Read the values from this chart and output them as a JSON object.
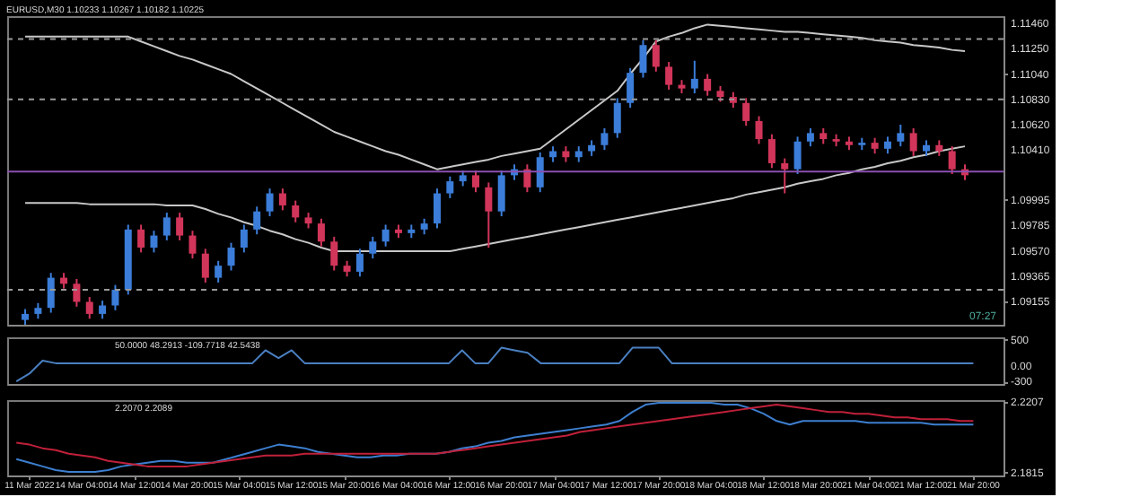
{
  "chart_data": [
    {
      "type": "candlestick",
      "title": "EURUSD,M30 1.10233 1.10267 1.10182 1.10225",
      "categories": [
        null,
        null,
        null,
        null,
        null,
        null,
        null,
        null,
        null,
        null,
        null,
        null,
        null,
        null,
        null,
        null,
        null,
        null,
        null,
        null,
        null,
        null,
        null,
        null,
        null,
        null,
        null,
        null,
        null,
        null,
        null,
        null,
        null,
        null,
        null,
        null,
        null,
        null,
        null,
        null,
        null,
        null,
        null,
        null,
        null,
        null,
        null,
        null,
        null,
        null,
        null,
        null,
        null,
        null,
        null,
        null,
        null,
        null,
        null,
        null,
        null,
        null,
        null,
        null,
        null,
        null,
        null,
        null,
        null,
        null,
        null,
        null,
        null,
        null
      ],
      "ohlc": [
        [
          1.09,
          1.0909,
          1.0896,
          1.0905
        ],
        [
          1.0905,
          1.0914,
          1.0901,
          1.091
        ],
        [
          1.091,
          1.0939,
          1.0906,
          1.0935
        ],
        [
          1.0935,
          1.0939,
          1.0926,
          1.093
        ],
        [
          1.093,
          1.0934,
          1.0911,
          1.0915
        ],
        [
          1.0915,
          1.0919,
          1.0901,
          1.0905
        ],
        [
          1.0905,
          1.0916,
          1.0901,
          1.0912
        ],
        [
          1.0912,
          1.0929,
          1.0908,
          1.0925
        ],
        [
          1.0925,
          1.0979,
          1.0921,
          1.0975
        ],
        [
          1.0975,
          1.0979,
          1.0956,
          1.096
        ],
        [
          1.096,
          1.0974,
          1.0956,
          1.097
        ],
        [
          1.097,
          1.0989,
          1.0966,
          1.0985
        ],
        [
          1.0985,
          1.0989,
          1.0966,
          1.097
        ],
        [
          1.097,
          1.0974,
          1.0951,
          1.0955
        ],
        [
          1.0955,
          1.0959,
          1.0931,
          1.0935
        ],
        [
          1.0935,
          1.0949,
          1.0931,
          1.0945
        ],
        [
          1.0945,
          1.0964,
          1.0941,
          1.096
        ],
        [
          1.096,
          1.0979,
          1.0956,
          1.0975
        ],
        [
          1.0975,
          1.0994,
          1.0971,
          1.099
        ],
        [
          1.099,
          1.1009,
          1.0986,
          1.1005
        ],
        [
          1.1005,
          1.1009,
          1.0991,
          1.0995
        ],
        [
          1.0995,
          1.0999,
          1.0981,
          1.0985
        ],
        [
          1.0985,
          1.0989,
          1.0976,
          1.098
        ],
        [
          1.098,
          1.0984,
          1.0961,
          1.0965
        ],
        [
          1.0965,
          1.0969,
          1.0941,
          1.0945
        ],
        [
          1.0945,
          1.0949,
          1.0936,
          1.094
        ],
        [
          1.094,
          1.0959,
          1.0936,
          1.0955
        ],
        [
          1.0955,
          1.0969,
          1.0951,
          1.0965
        ],
        [
          1.0965,
          1.0979,
          1.0961,
          1.0975
        ],
        [
          1.0975,
          1.0979,
          1.0968,
          1.0972
        ],
        [
          1.0972,
          1.0979,
          1.0968,
          1.0975
        ],
        [
          1.0975,
          1.0984,
          1.0971,
          1.098
        ],
        [
          1.098,
          1.1009,
          1.0976,
          1.1005
        ],
        [
          1.1005,
          1.1019,
          1.1001,
          1.1015
        ],
        [
          1.1015,
          1.1024,
          1.1011,
          1.102
        ],
        [
          1.102,
          1.1024,
          1.1006,
          1.101
        ],
        [
          1.101,
          1.1014,
          1.096,
          1.099
        ],
        [
          1.099,
          1.1024,
          1.0986,
          1.102
        ],
        [
          1.102,
          1.1029,
          1.1016,
          1.1025
        ],
        [
          1.1025,
          1.1029,
          1.1006,
          1.101
        ],
        [
          1.101,
          1.1039,
          1.1006,
          1.1035
        ],
        [
          1.1035,
          1.1044,
          1.1031,
          1.104
        ],
        [
          1.104,
          1.1044,
          1.1031,
          1.1035
        ],
        [
          1.1035,
          1.1044,
          1.1031,
          1.104
        ],
        [
          1.104,
          1.1049,
          1.1036,
          1.1045
        ],
        [
          1.1045,
          1.1059,
          1.1041,
          1.1055
        ],
        [
          1.1055,
          1.1084,
          1.1051,
          1.108
        ],
        [
          1.108,
          1.1109,
          1.1076,
          1.1105
        ],
        [
          1.1105,
          1.1132,
          1.1101,
          1.1128
        ],
        [
          1.1128,
          1.1132,
          1.1106,
          1.111
        ],
        [
          1.111,
          1.1114,
          1.1091,
          1.1095
        ],
        [
          1.1095,
          1.1099,
          1.1088,
          1.1092
        ],
        [
          1.1092,
          1.1115,
          1.1088,
          1.11
        ],
        [
          1.11,
          1.1104,
          1.1086,
          1.109
        ],
        [
          1.109,
          1.1094,
          1.1081,
          1.1085
        ],
        [
          1.1085,
          1.1089,
          1.1076,
          1.108
        ],
        [
          1.108,
          1.1084,
          1.1061,
          1.1065
        ],
        [
          1.1065,
          1.1069,
          1.1046,
          1.105
        ],
        [
          1.105,
          1.1054,
          1.1026,
          1.103
        ],
        [
          1.103,
          1.1034,
          1.1005,
          1.1025
        ],
        [
          1.1025,
          1.1052,
          1.1021,
          1.1048
        ],
        [
          1.1048,
          1.1059,
          1.1044,
          1.1055
        ],
        [
          1.1055,
          1.1059,
          1.1046,
          1.105
        ],
        [
          1.105,
          1.1054,
          1.1044,
          1.1048
        ],
        [
          1.1048,
          1.1052,
          1.1041,
          1.1045
        ],
        [
          1.1045,
          1.1051,
          1.1041,
          1.1047
        ],
        [
          1.1047,
          1.1051,
          1.1038,
          1.1042
        ],
        [
          1.1042,
          1.1052,
          1.1038,
          1.1048
        ],
        [
          1.1048,
          1.1062,
          1.1044,
          1.1055
        ],
        [
          1.1055,
          1.1059,
          1.1036,
          1.104
        ],
        [
          1.104,
          1.1049,
          1.1036,
          1.1045
        ],
        [
          1.1045,
          1.1049,
          1.1036,
          1.104
        ],
        [
          1.104,
          1.1044,
          1.1021,
          1.1025
        ],
        [
          1.1025,
          1.1029,
          1.1016,
          1.102
        ]
      ],
      "series": [
        {
          "type": "line",
          "color": "#c8c8c8",
          "values": [
            1.1135,
            1.1135,
            1.1135,
            1.1135,
            1.1135,
            1.1135,
            1.1135,
            1.1135,
            1.1135,
            1.1131,
            1.1127,
            1.1123,
            1.1119,
            1.1116,
            1.1112,
            1.1108,
            1.1104,
            1.1098,
            1.1092,
            1.1086,
            1.108,
            1.1074,
            1.1068,
            1.1062,
            1.1056,
            1.1052,
            1.1048,
            1.1044,
            1.104,
            1.1037,
            1.1033,
            1.1029,
            1.1025,
            1.1027,
            1.1029,
            1.1031,
            1.1033,
            1.1036,
            1.1038,
            1.104,
            1.1042,
            1.105,
            1.1058,
            1.1066,
            1.1074,
            1.1082,
            1.109,
            1.1104,
            1.1117,
            1.1131,
            1.1135,
            1.1138,
            1.1142,
            1.1145,
            1.1144,
            1.1143,
            1.1142,
            1.1141,
            1.114,
            1.1139,
            1.1139,
            1.1138,
            1.1137,
            1.1136,
            1.1135,
            1.1134,
            1.1132,
            1.1131,
            1.113,
            1.1128,
            1.1127,
            1.1126,
            1.1124,
            1.1123
          ]
        },
        {
          "type": "line",
          "color": "#c8c8c8",
          "values": [
            1.0997,
            1.0997,
            1.0997,
            1.0997,
            1.0997,
            1.0996,
            1.0996,
            1.0996,
            1.0996,
            1.0996,
            1.0996,
            1.0995,
            1.0995,
            1.0995,
            1.0992,
            1.0988,
            1.0985,
            1.0981,
            1.0978,
            1.0974,
            1.0971,
            1.0967,
            1.0964,
            1.096,
            1.0957,
            1.0957,
            1.0957,
            1.0957,
            1.0957,
            1.0957,
            1.0957,
            1.0957,
            1.0957,
            1.0957,
            1.0959,
            1.0961,
            1.0963,
            1.0965,
            1.0967,
            1.0969,
            1.0971,
            1.0973,
            1.0975,
            1.0977,
            1.0979,
            1.0981,
            1.0983,
            1.0985,
            1.0987,
            1.0989,
            1.0991,
            1.0993,
            1.0995,
            1.0997,
            1.0999,
            1.1001,
            1.1004,
            1.1006,
            1.1008,
            1.101,
            1.1013,
            1.1015,
            1.1017,
            1.102,
            1.1022,
            1.1025,
            1.1027,
            1.103,
            1.1032,
            1.1035,
            1.1037,
            1.104,
            1.1042,
            1.1044
          ]
        }
      ],
      "ylim": [
        1.0896,
        1.1152
      ],
      "yticks": [
        {
          "value": 1.1146,
          "label": "1.11460"
        },
        {
          "value": 1.1125,
          "label": "1.11250"
        },
        {
          "value": 1.1104,
          "label": "1.11040"
        },
        {
          "value": 1.1083,
          "label": "1.10830"
        },
        {
          "value": 1.1062,
          "label": "1.10620"
        },
        {
          "value": 1.1041,
          "label": "1.10410"
        },
        1.09995,
        1.09785,
        {
          "value": 1.0957,
          "label": "1.09570"
        },
        1.09365,
        1.09155
      ],
      "ref_lines": [
        {
          "axis": "y",
          "value": 1.1133,
          "color": "#9a9a9a",
          "line_style": "dashed"
        },
        {
          "axis": "y",
          "value": 1.1083,
          "color": "#9a9a9a",
          "line_style": "dashed"
        },
        {
          "axis": "y",
          "value": 1.1023,
          "color": "#8a4fb0",
          "line_style": "solid"
        },
        {
          "axis": "y",
          "value": 1.0925,
          "color": "#9a9a9a",
          "line_style": "dashed"
        }
      ],
      "annotations": [
        "07:27"
      ],
      "tick_labels": "y"
    },
    {
      "type": "line",
      "categories": [
        null,
        null,
        null,
        null,
        null,
        null,
        null,
        null,
        null,
        null,
        null,
        null,
        null,
        null,
        null,
        null,
        null,
        null,
        null,
        null,
        null,
        null,
        null,
        null,
        null,
        null,
        null,
        null,
        null,
        null,
        null,
        null,
        null,
        null,
        null,
        null,
        null,
        null,
        null,
        null,
        null,
        null,
        null,
        null,
        null,
        null,
        null,
        null,
        null,
        null,
        null,
        null,
        null,
        null,
        null,
        null,
        null,
        null,
        null,
        null,
        null,
        null,
        null,
        null,
        null,
        null,
        null,
        null,
        null,
        null,
        null,
        null,
        null,
        null
      ],
      "series": [
        {
          "color": "#4a7fc1",
          "values": [
            -300,
            -150,
            100,
            50,
            50,
            50,
            50,
            50,
            50,
            50,
            50,
            50,
            50,
            50,
            50,
            50,
            50,
            50,
            50,
            300,
            150,
            300,
            50,
            50,
            50,
            50,
            50,
            50,
            50,
            50,
            50,
            50,
            50,
            50,
            300,
            50,
            50,
            350,
            300,
            250,
            50,
            50,
            50,
            50,
            50,
            50,
            50,
            350,
            350,
            350,
            50,
            50,
            50,
            50,
            50,
            50,
            50,
            50,
            50,
            50,
            50,
            50,
            50,
            50,
            50,
            50,
            50,
            50,
            50,
            50,
            50,
            50,
            50,
            50
          ]
        }
      ],
      "ylim": [
        -350,
        550
      ],
      "yticks": [
        500,
        {
          "value": 0,
          "label": "0.00"
        },
        -300
      ],
      "annotations": [
        "50.0000 48.2913 -109.7718 42.5438"
      ],
      "tick_labels": "y"
    },
    {
      "type": "line",
      "categories": [
        null,
        "11 Mar 2022",
        null,
        null,
        null,
        "14 Mar 04:00",
        null,
        null,
        null,
        "14 Mar 12:00",
        null,
        null,
        null,
        "14 Mar 20:00",
        null,
        null,
        null,
        "15 Mar 04:00",
        null,
        null,
        null,
        "15 Mar 12:00",
        null,
        null,
        null,
        "15 Mar 20:00",
        null,
        null,
        null,
        "16 Mar 04:00",
        null,
        null,
        null,
        "16 Mar 12:00",
        null,
        null,
        null,
        "16 Mar 20:00",
        null,
        null,
        null,
        "17 Mar 04:00",
        null,
        null,
        null,
        "17 Mar 12:00",
        null,
        null,
        null,
        "17 Mar 20:00",
        null,
        null,
        null,
        "18 Mar 04:00",
        null,
        null,
        null,
        "18 Mar 12:00",
        null,
        null,
        null,
        "18 Mar 20:00",
        null,
        null,
        null,
        "21 Mar 04:00",
        null,
        null,
        null,
        "21 Mar 12:00",
        null,
        null,
        null,
        "21 Mar 20:00"
      ],
      "series": [
        {
          "color": "#3d7fd0",
          "values": [
            2.189,
            2.187,
            2.185,
            2.183,
            2.182,
            2.182,
            2.182,
            2.183,
            2.185,
            2.186,
            2.187,
            2.188,
            2.188,
            2.187,
            2.187,
            2.187,
            2.189,
            2.191,
            2.193,
            2.195,
            2.197,
            2.196,
            2.195,
            2.193,
            2.192,
            2.191,
            2.19,
            2.19,
            2.191,
            2.191,
            2.192,
            2.192,
            2.192,
            2.193,
            2.195,
            2.196,
            2.198,
            2.199,
            2.201,
            2.202,
            2.203,
            2.204,
            2.205,
            2.206,
            2.207,
            2.208,
            2.21,
            2.215,
            2.219,
            2.22,
            2.22,
            2.22,
            2.22,
            2.22,
            2.219,
            2.219,
            2.217,
            2.214,
            2.21,
            2.208,
            2.21,
            2.21,
            2.21,
            2.21,
            2.21,
            2.209,
            2.209,
            2.209,
            2.209,
            2.209,
            2.208,
            2.208,
            2.208,
            2.208
          ]
        },
        {
          "color": "#c0203a",
          "values": [
            2.198,
            2.197,
            2.195,
            2.194,
            2.192,
            2.191,
            2.19,
            2.188,
            2.187,
            2.186,
            2.185,
            2.185,
            2.185,
            2.185,
            2.186,
            2.187,
            2.188,
            2.189,
            2.19,
            2.191,
            2.191,
            2.191,
            2.192,
            2.192,
            2.192,
            2.192,
            2.192,
            2.192,
            2.192,
            2.192,
            2.192,
            2.192,
            2.192,
            2.193,
            2.194,
            2.195,
            2.196,
            2.197,
            2.198,
            2.199,
            2.2,
            2.201,
            2.202,
            2.204,
            2.205,
            2.206,
            2.207,
            2.208,
            2.209,
            2.21,
            2.211,
            2.212,
            2.213,
            2.214,
            2.215,
            2.216,
            2.217,
            2.218,
            2.219,
            2.218,
            2.217,
            2.216,
            2.215,
            2.215,
            2.214,
            2.214,
            2.213,
            2.212,
            2.212,
            2.211,
            2.211,
            2.211,
            2.21,
            2.21
          ]
        }
      ],
      "ylim": [
        2.18,
        2.2215
      ],
      "yticks": [
        2.2207,
        2.1815
      ],
      "annotations": [
        "2.2070 2.2089"
      ]
    }
  ]
}
